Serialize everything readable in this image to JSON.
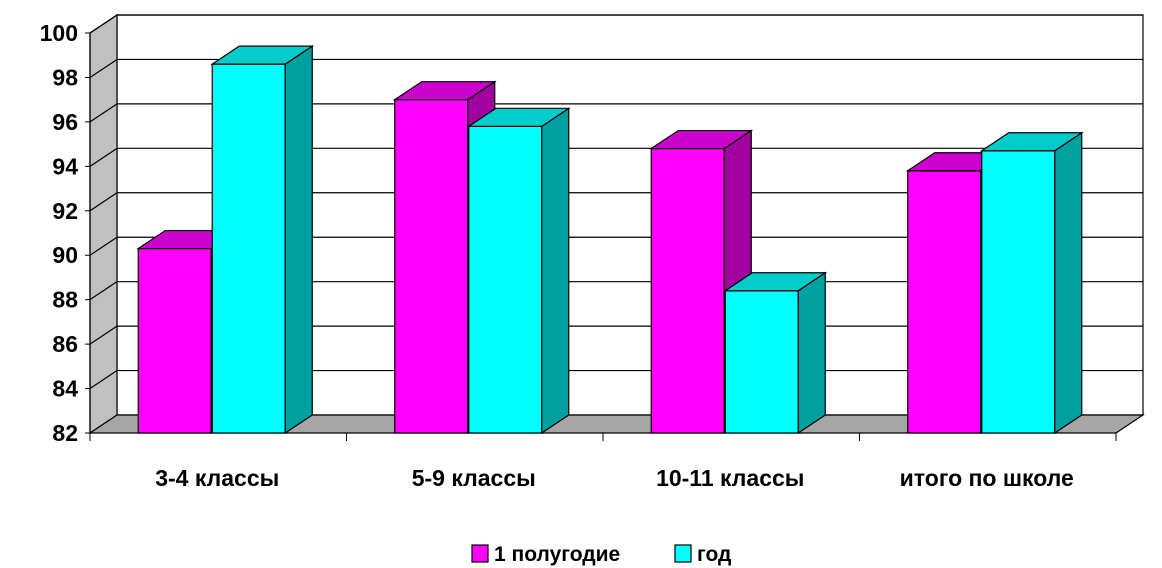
{
  "chart_data": {
    "type": "bar",
    "style": "3d-clustered-column",
    "categories": [
      "3-4 классы",
      "5-9 классы",
      "10-11 классы",
      "итого по школе"
    ],
    "series": [
      {
        "name": "1 полугодие",
        "values": [
          90.3,
          97.0,
          94.8,
          93.8
        ],
        "color": "#FF00FF",
        "side_color": "#A000A0",
        "top_color": "#CC00CC"
      },
      {
        "name": "год",
        "values": [
          98.6,
          95.8,
          88.4,
          94.7
        ],
        "color": "#00FFFF",
        "side_color": "#00A0A0",
        "top_color": "#00CCCC"
      }
    ],
    "ylim": [
      82,
      100
    ],
    "yticks": [
      "82",
      "84",
      "86",
      "88",
      "90",
      "92",
      "94",
      "96",
      "98",
      "100"
    ],
    "title": "",
    "xlabel": "",
    "ylabel": "",
    "grid": true,
    "legend_position": "bottom"
  }
}
